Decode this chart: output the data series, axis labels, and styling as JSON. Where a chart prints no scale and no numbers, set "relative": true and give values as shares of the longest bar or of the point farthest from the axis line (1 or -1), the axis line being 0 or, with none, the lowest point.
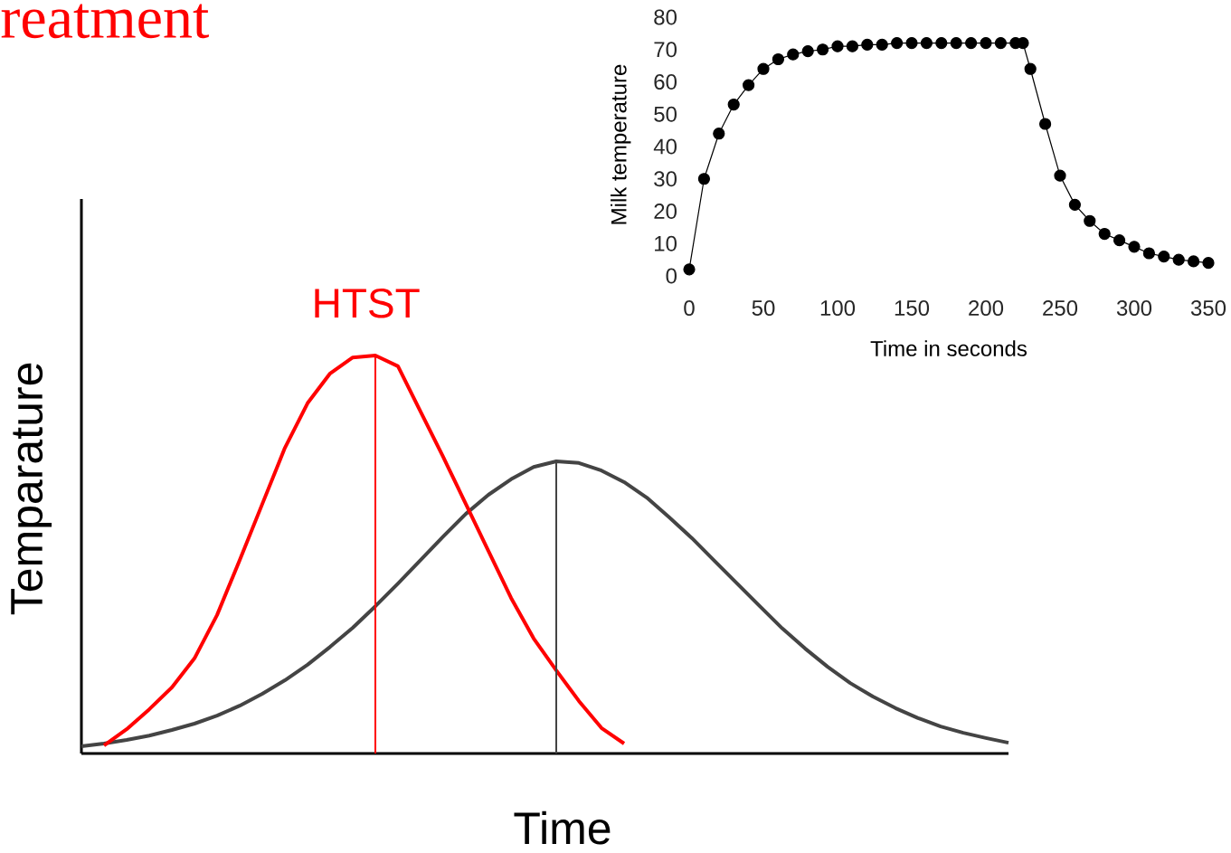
{
  "chart_data": [
    {
      "type": "line",
      "title": "reatment",
      "xlabel": "Time",
      "ylabel": "Temparature",
      "relative": true,
      "marker": "none",
      "annotations": [
        "HTST"
      ],
      "categories": [
        null,
        null,
        null,
        null,
        null,
        null,
        null,
        null,
        null,
        null,
        null,
        null,
        null,
        null,
        null,
        null,
        null,
        null,
        null,
        null,
        null,
        null,
        null,
        null,
        null,
        null,
        null,
        null,
        null,
        null,
        null,
        null,
        null,
        null,
        null,
        null,
        null,
        null,
        null,
        null,
        null,
        null
      ],
      "series": [
        {
          "color": "#444444",
          "values": [
            0.018,
            0.025,
            0.034,
            0.045,
            0.059,
            0.075,
            0.095,
            0.12,
            0.15,
            0.184,
            0.223,
            0.268,
            0.316,
            0.37,
            0.427,
            0.486,
            0.545,
            0.602,
            0.65,
            0.689,
            0.72,
            0.734,
            0.73,
            0.711,
            0.682,
            0.643,
            0.593,
            0.541,
            0.484,
            0.427,
            0.37,
            0.314,
            0.264,
            0.218,
            0.177,
            0.143,
            0.114,
            0.089,
            0.068,
            0.052,
            0.039,
            0.027
          ]
        },
        {
          "color": "#ff0000",
          "values": [
            null,
            0.02,
            0.061,
            0.111,
            0.166,
            0.239,
            0.348,
            0.486,
            0.627,
            0.768,
            0.88,
            0.955,
            0.995,
            1,
            0.973,
            0.859,
            0.745,
            0.627,
            0.509,
            0.391,
            0.289,
            0.209,
            0.132,
            0.064,
            0.025,
            null,
            null,
            null,
            null,
            null,
            null,
            null,
            null,
            null,
            null,
            null,
            null,
            null,
            null,
            null,
            null,
            null
          ]
        }
      ]
    },
    {
      "type": "line",
      "xlabel": "Time in seconds",
      "ylabel": "Milk temperature",
      "marker": "circle",
      "line_style": "solid",
      "xlim": [
        0,
        350
      ],
      "ylim": [
        0,
        80
      ],
      "xticks": [
        0,
        50,
        100,
        150,
        200,
        250,
        300,
        350
      ],
      "yticks": [
        0,
        10,
        20,
        30,
        40,
        50,
        60,
        70,
        80
      ],
      "x": [
        0,
        10,
        20,
        30,
        40,
        50,
        60,
        70,
        80,
        90,
        100,
        110,
        120,
        130,
        140,
        150,
        160,
        170,
        180,
        190,
        200,
        210,
        220,
        225,
        230,
        240,
        250,
        260,
        270,
        280,
        290,
        300,
        310,
        320,
        330,
        340,
        350
      ],
      "series": [
        {
          "color": "#000000",
          "values": [
            2,
            30,
            44,
            53,
            59,
            64,
            67,
            68.5,
            69.5,
            70,
            71,
            71,
            71.5,
            71.5,
            72,
            72,
            72,
            72,
            72,
            72,
            72,
            72,
            72,
            72,
            64,
            47,
            31,
            22,
            17,
            13,
            11,
            9,
            7,
            6,
            5,
            4.5,
            4
          ]
        }
      ]
    }
  ]
}
